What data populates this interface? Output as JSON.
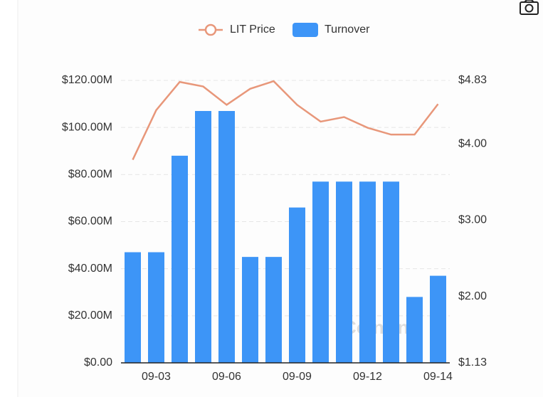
{
  "chart_data": {
    "type": "bar+line",
    "categories": [
      null,
      "09-03",
      null,
      null,
      "09-06",
      null,
      null,
      "09-09",
      null,
      null,
      "09-12",
      null,
      null,
      "09-14"
    ],
    "series": [
      {
        "name": "Turnover",
        "type": "bar",
        "color": "#3d95f7",
        "values": [
          47000000,
          47000000,
          88000000,
          107000000,
          107000000,
          45000000,
          45000000,
          66000000,
          77000000,
          77000000,
          77000000,
          77000000,
          28000000,
          37000000
        ]
      },
      {
        "name": "LIT Price",
        "type": "line",
        "axis": "y2",
        "color": "#e8977a",
        "values": [
          3.79,
          4.44,
          4.81,
          4.75,
          4.51,
          4.72,
          4.82,
          4.51,
          4.29,
          4.35,
          4.21,
          4.12,
          4.12,
          4.52
        ]
      }
    ],
    "ylim": [
      0,
      120000000
    ],
    "yticks": [
      {
        "value": 0,
        "label": "$0.00"
      },
      {
        "value": 20000000,
        "label": "$20.00M"
      },
      {
        "value": 40000000,
        "label": "$40.00M"
      },
      {
        "value": 60000000,
        "label": "$60.00M"
      },
      {
        "value": 80000000,
        "label": "$80.00M"
      },
      {
        "value": 100000000,
        "label": "$100.00M"
      },
      {
        "value": 120000000,
        "label": "$120.00M"
      }
    ],
    "y2lim": [
      1.13,
      4.83
    ],
    "y2ticks": [
      {
        "value": 1.13,
        "label": "$1.13"
      },
      {
        "value": 2,
        "label": "$2.00"
      },
      {
        "value": 3,
        "label": "$3.00"
      },
      {
        "value": 4,
        "label": "$4.00"
      },
      {
        "value": 4.83,
        "label": "$4.83"
      }
    ],
    "grid": true,
    "legend": "top",
    "watermark": "CoinAnk"
  }
}
